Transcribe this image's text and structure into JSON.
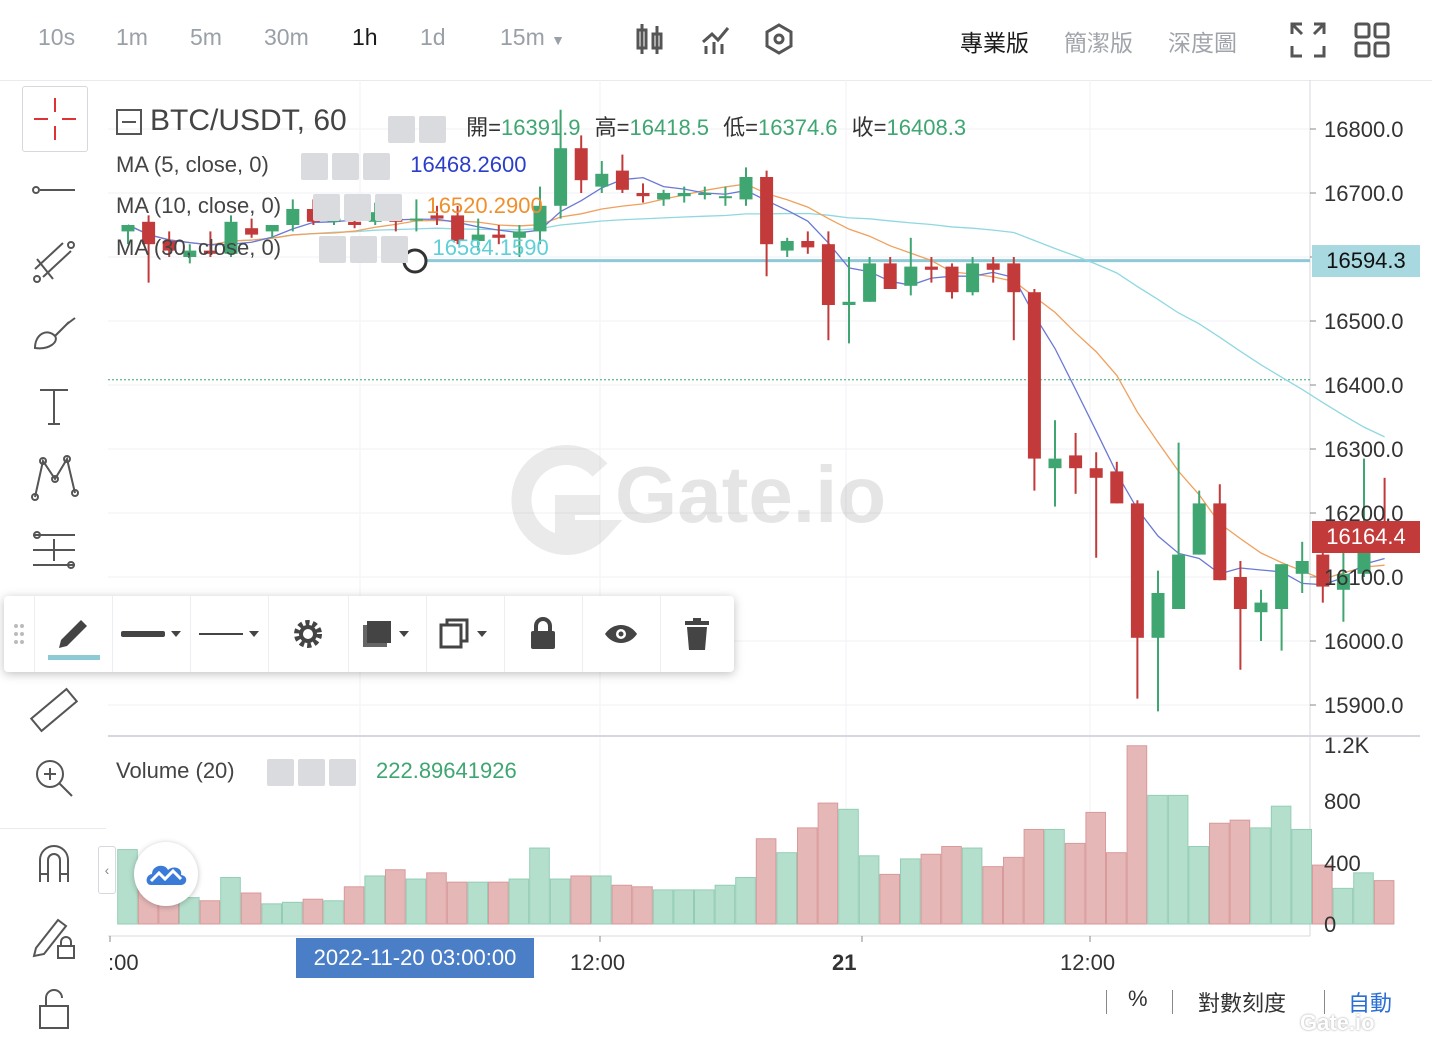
{
  "toolbar": {
    "intervals": [
      "10s",
      "1m",
      "5m",
      "30m",
      "1h",
      "1d",
      "15m"
    ],
    "active_interval": "1h",
    "icons": [
      "candlestick-icon",
      "indicators-icon",
      "settings-hex-icon"
    ],
    "versions": [
      "專業版",
      "簡潔版",
      "深度圖"
    ],
    "active_version": "專業版",
    "right_icons": [
      "fullscreen-icon",
      "grid-layout-icon"
    ]
  },
  "left_tools": [
    "crosshair-icon",
    "line-icon",
    "fib-icon",
    "brush-icon",
    "text-icon",
    "pattern-icon",
    "measure-icon",
    "ruler-icon",
    "zoom-in-icon",
    "magnet-icon",
    "lock-draw-icon",
    "unlock-icon"
  ],
  "legend": {
    "symbol": "BTC/USDT, 60",
    "open_label": "開=",
    "open": "16391.9",
    "high_label": "高=",
    "high": "16418.5",
    "low_label": "低=",
    "low": "16374.6",
    "close_label": "收=",
    "close": "16408.3",
    "ma5_label": "MA (5, close, 0)",
    "ma5_value": "16468.2600",
    "ma10_label": "MA (10, close, 0)",
    "ma10_value": "16520.2900",
    "ma30_label": "MA (30, close, 0)",
    "ma30_value": "16584.1590",
    "volume_label": "Volume (20)",
    "volume_value": "222.89641926"
  },
  "price_tags": {
    "line_price": "16594.3",
    "last_price": "16164.4"
  },
  "watermark": "Gate.io",
  "bottom": {
    "crosshair_time": "2022-11-20 03:00:00",
    "scale_pct": "%",
    "scale_log": "對數刻度",
    "scale_auto": "自動"
  },
  "colors": {
    "up": "#3fa672",
    "down": "#c23a3a",
    "up_vol": "#b5dfcd",
    "down_vol": "#e6b7b7",
    "ma5": "#6a78d6",
    "ma10": "#f0a05c",
    "ma30": "#8fd8e0",
    "hline": "#8ec9d6",
    "accent": "#2a6fd6"
  },
  "chart_data": {
    "type": "candlestick",
    "y_ticks": [
      "16800.0",
      "16700.0",
      "16600.0",
      "16500.0",
      "16400.0",
      "16300.0",
      "16200.0",
      "16100.0",
      "16000.0",
      "15900.0"
    ],
    "ylim": [
      15880,
      16830
    ],
    "volume_ticks": [
      "1.2K",
      "800",
      "400",
      "0"
    ],
    "volume_ylim": [
      0,
      1200
    ],
    "x_ticks": [
      ":00",
      "12:00",
      "21",
      "12:00"
    ],
    "horizontal_line": 16594.3,
    "dotted_line": 16408.3,
    "candles": [
      {
        "o": 16640,
        "h": 16650,
        "l": 16620,
        "c": 16650,
        "v": 480
      },
      {
        "o": 16655,
        "h": 16665,
        "l": 16560,
        "c": 16620,
        "v": 280
      },
      {
        "o": 16625,
        "h": 16640,
        "l": 16600,
        "c": 16610,
        "v": 200
      },
      {
        "o": 16600,
        "h": 16620,
        "l": 16590,
        "c": 16610,
        "v": 170
      },
      {
        "o": 16610,
        "h": 16640,
        "l": 16600,
        "c": 16605,
        "v": 150
      },
      {
        "o": 16605,
        "h": 16665,
        "l": 16600,
        "c": 16655,
        "v": 300
      },
      {
        "o": 16645,
        "h": 16660,
        "l": 16630,
        "c": 16635,
        "v": 200
      },
      {
        "o": 16640,
        "h": 16650,
        "l": 16630,
        "c": 16650,
        "v": 130
      },
      {
        "o": 16650,
        "h": 16690,
        "l": 16640,
        "c": 16675,
        "v": 140
      },
      {
        "o": 16675,
        "h": 16690,
        "l": 16650,
        "c": 16655,
        "v": 160
      },
      {
        "o": 16655,
        "h": 16670,
        "l": 16650,
        "c": 16660,
        "v": 150
      },
      {
        "o": 16655,
        "h": 16675,
        "l": 16645,
        "c": 16650,
        "v": 240
      },
      {
        "o": 16655,
        "h": 16685,
        "l": 16650,
        "c": 16670,
        "v": 310
      },
      {
        "o": 16660,
        "h": 16670,
        "l": 16640,
        "c": 16655,
        "v": 350
      },
      {
        "o": 16660,
        "h": 16690,
        "l": 16640,
        "c": 16660,
        "v": 290
      },
      {
        "o": 16665,
        "h": 16680,
        "l": 16650,
        "c": 16660,
        "v": 330
      },
      {
        "o": 16665,
        "h": 16680,
        "l": 16620,
        "c": 16625,
        "v": 270
      },
      {
        "o": 16625,
        "h": 16660,
        "l": 16610,
        "c": 16635,
        "v": 270
      },
      {
        "o": 16635,
        "h": 16650,
        "l": 16620,
        "c": 16630,
        "v": 270
      },
      {
        "o": 16630,
        "h": 16650,
        "l": 16600,
        "c": 16640,
        "v": 290
      },
      {
        "o": 16640,
        "h": 16710,
        "l": 16620,
        "c": 16680,
        "v": 490
      },
      {
        "o": 16680,
        "h": 16830,
        "l": 16660,
        "c": 16770,
        "v": 290
      },
      {
        "o": 16770,
        "h": 16790,
        "l": 16700,
        "c": 16720,
        "v": 310
      },
      {
        "o": 16710,
        "h": 16750,
        "l": 16700,
        "c": 16730,
        "v": 310
      },
      {
        "o": 16735,
        "h": 16760,
        "l": 16700,
        "c": 16705,
        "v": 250
      },
      {
        "o": 16700,
        "h": 16715,
        "l": 16685,
        "c": 16695,
        "v": 240
      },
      {
        "o": 16690,
        "h": 16705,
        "l": 16680,
        "c": 16700,
        "v": 220
      },
      {
        "o": 16695,
        "h": 16710,
        "l": 16685,
        "c": 16700,
        "v": 220
      },
      {
        "o": 16700,
        "h": 16710,
        "l": 16690,
        "c": 16700,
        "v": 220
      },
      {
        "o": 16695,
        "h": 16710,
        "l": 16680,
        "c": 16695,
        "v": 250
      },
      {
        "o": 16690,
        "h": 16740,
        "l": 16680,
        "c": 16725,
        "v": 300
      },
      {
        "o": 16725,
        "h": 16735,
        "l": 16570,
        "c": 16620,
        "v": 550
      },
      {
        "o": 16610,
        "h": 16630,
        "l": 16600,
        "c": 16625,
        "v": 460
      },
      {
        "o": 16625,
        "h": 16640,
        "l": 16605,
        "c": 16615,
        "v": 620
      },
      {
        "o": 16620,
        "h": 16640,
        "l": 16470,
        "c": 16525,
        "v": 780
      },
      {
        "o": 16525,
        "h": 16600,
        "l": 16465,
        "c": 16530,
        "v": 740
      },
      {
        "o": 16530,
        "h": 16600,
        "l": 16530,
        "c": 16590,
        "v": 440
      },
      {
        "o": 16590,
        "h": 16600,
        "l": 16550,
        "c": 16550,
        "v": 320
      },
      {
        "o": 16555,
        "h": 16630,
        "l": 16540,
        "c": 16585,
        "v": 420
      },
      {
        "o": 16585,
        "h": 16600,
        "l": 16560,
        "c": 16580,
        "v": 450
      },
      {
        "o": 16585,
        "h": 16590,
        "l": 16535,
        "c": 16545,
        "v": 500
      },
      {
        "o": 16545,
        "h": 16600,
        "l": 16540,
        "c": 16590,
        "v": 490
      },
      {
        "o": 16590,
        "h": 16600,
        "l": 16560,
        "c": 16580,
        "v": 370
      },
      {
        "o": 16590,
        "h": 16600,
        "l": 16470,
        "c": 16545,
        "v": 430
      },
      {
        "o": 16545,
        "h": 16550,
        "l": 16235,
        "c": 16285,
        "v": 610
      },
      {
        "o": 16270,
        "h": 16345,
        "l": 16210,
        "c": 16285,
        "v": 610
      },
      {
        "o": 16290,
        "h": 16325,
        "l": 16230,
        "c": 16270,
        "v": 520
      },
      {
        "o": 16270,
        "h": 16295,
        "l": 16130,
        "c": 16255,
        "v": 720
      },
      {
        "o": 16265,
        "h": 16280,
        "l": 16215,
        "c": 16215,
        "v": 460
      },
      {
        "o": 16215,
        "h": 16220,
        "l": 15910,
        "c": 16005,
        "v": 1150
      },
      {
        "o": 16005,
        "h": 16110,
        "l": 15890,
        "c": 16075,
        "v": 830
      },
      {
        "o": 16050,
        "h": 16310,
        "l": 16050,
        "c": 16135,
        "v": 830
      },
      {
        "o": 16135,
        "h": 16235,
        "l": 16135,
        "c": 16215,
        "v": 500
      },
      {
        "o": 16215,
        "h": 16245,
        "l": 16095,
        "c": 16095,
        "v": 650
      },
      {
        "o": 16100,
        "h": 16125,
        "l": 15955,
        "c": 16050,
        "v": 670
      },
      {
        "o": 16045,
        "h": 16080,
        "l": 16000,
        "c": 16060,
        "v": 620
      },
      {
        "o": 16050,
        "h": 16120,
        "l": 15985,
        "c": 16120,
        "v": 760
      },
      {
        "o": 16105,
        "h": 16155,
        "l": 16075,
        "c": 16125,
        "v": 610
      },
      {
        "o": 16135,
        "h": 16160,
        "l": 16060,
        "c": 16085,
        "v": 380
      },
      {
        "o": 16080,
        "h": 16150,
        "l": 16030,
        "c": 16105,
        "v": 230
      },
      {
        "o": 16105,
        "h": 16285,
        "l": 16100,
        "c": 16165,
        "v": 330
      },
      {
        "o": 16175,
        "h": 16255,
        "l": 16160,
        "c": 16164.4,
        "v": 280
      }
    ]
  }
}
